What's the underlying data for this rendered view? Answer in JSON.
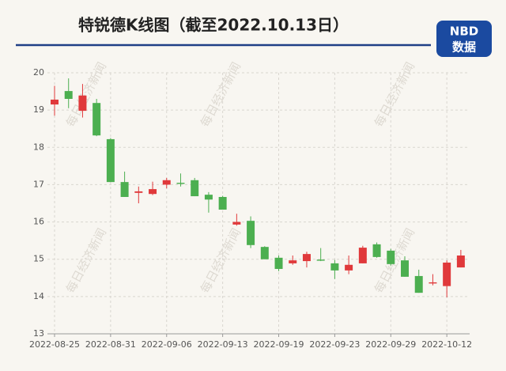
{
  "chart_data": {
    "type": "candlestick",
    "title": "特锐德K线图（截至2022.10.13日）",
    "categories": [
      "2022-08-25",
      null,
      null,
      null,
      "2022-08-31",
      null,
      null,
      null,
      "2022-09-06",
      null,
      null,
      null,
      "2022-09-13",
      null,
      null,
      null,
      "2022-09-19",
      null,
      null,
      null,
      "2022-09-23",
      null,
      null,
      null,
      "2022-09-29",
      null,
      null,
      null,
      "2022-10-12",
      null
    ],
    "open": [
      19.15,
      19.51,
      18.98,
      19.19,
      18.22,
      17.07,
      16.78,
      16.75,
      17.0,
      17.05,
      17.12,
      16.73,
      16.67,
      15.93,
      16.03,
      15.33,
      15.04,
      14.89,
      14.95,
      14.99,
      14.89,
      14.7,
      14.89,
      15.4,
      15.23,
      14.97,
      14.55,
      14.35,
      14.28,
      14.78
    ],
    "high": [
      19.65,
      19.85,
      19.7,
      19.3,
      18.25,
      17.35,
      16.95,
      17.08,
      17.18,
      17.3,
      17.18,
      16.8,
      16.7,
      16.22,
      16.15,
      15.35,
      15.1,
      15.1,
      15.2,
      15.3,
      14.98,
      15.1,
      15.36,
      15.45,
      15.28,
      15.08,
      14.72,
      14.6,
      14.97,
      15.25
    ],
    "low": [
      18.85,
      19.05,
      18.8,
      18.3,
      17.07,
      16.67,
      16.5,
      16.72,
      16.9,
      16.95,
      16.69,
      16.25,
      16.33,
      15.9,
      15.3,
      15.0,
      14.68,
      14.85,
      14.78,
      14.95,
      14.47,
      14.6,
      14.89,
      15.04,
      14.83,
      14.53,
      14.1,
      14.3,
      13.98,
      14.78
    ],
    "close": [
      19.28,
      19.3,
      19.39,
      18.32,
      17.07,
      16.67,
      16.82,
      16.88,
      17.12,
      17.02,
      16.69,
      16.6,
      16.33,
      16.0,
      15.38,
      15.0,
      14.74,
      14.97,
      15.14,
      14.96,
      14.7,
      14.85,
      15.31,
      15.06,
      14.87,
      14.53,
      14.1,
      14.38,
      14.91,
      15.1
    ],
    "up_color": "#e0393b",
    "down_color": "#4caf50",
    "ylim": [
      13,
      20
    ],
    "yticks": [
      13,
      14,
      15,
      16,
      17,
      18,
      19,
      20
    ],
    "grid": true
  },
  "logo": {
    "top": "NBD",
    "bottom": "数据"
  },
  "watermark": "每日经济新闻"
}
